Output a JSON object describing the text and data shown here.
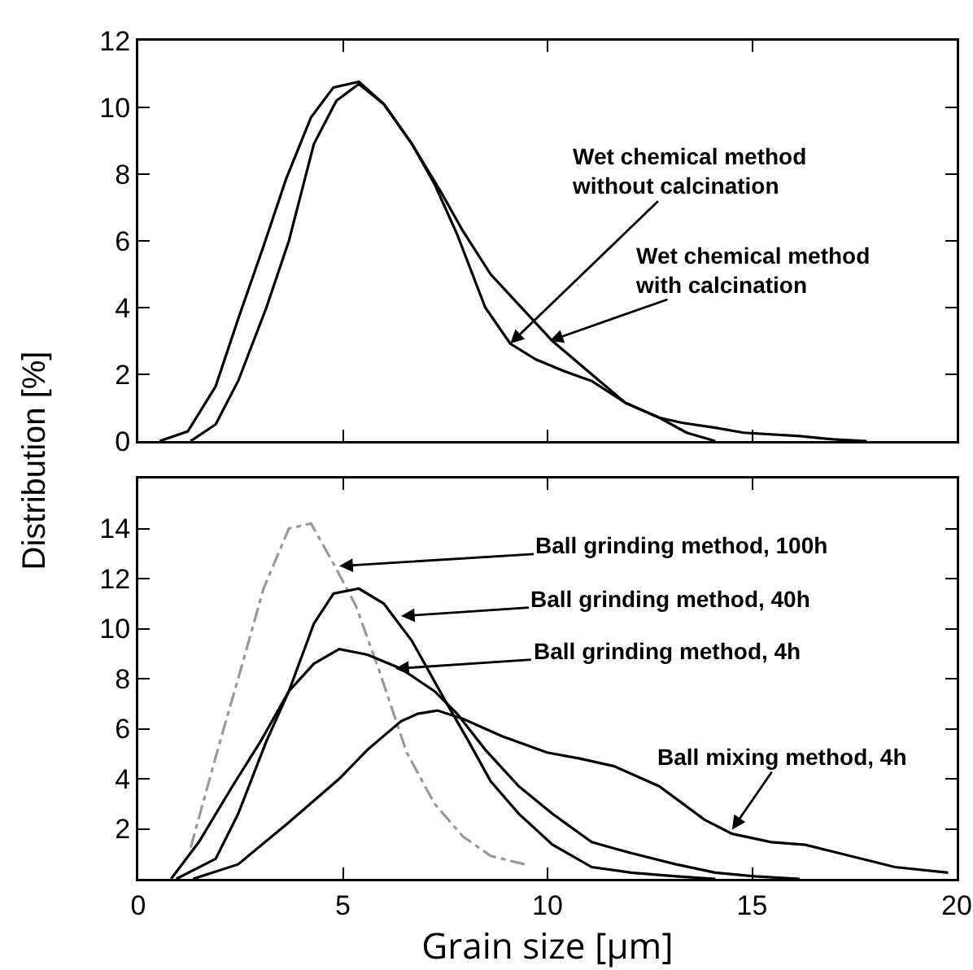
{
  "chart_data": [
    {
      "type": "line",
      "ylabel": "Distribution  [%]",
      "xlim": [
        0,
        20
      ],
      "xticks": [
        0,
        5,
        10,
        15,
        20
      ],
      "ylim": [
        0,
        12
      ],
      "yticks": [
        0,
        2,
        4,
        6,
        8,
        10,
        12
      ],
      "tick_labels": "y",
      "series": [
        {
          "color": "#000000",
          "x": [
            0.52,
            1.21,
            1.89,
            2.44,
            3.06,
            3.61,
            4.22,
            4.77,
            5.39,
            6.0,
            6.69,
            7.24,
            7.79,
            8.48,
            9.09,
            9.71,
            10.4,
            11.08,
            11.9,
            12.73,
            13.4,
            14.1
          ],
          "values": [
            0,
            0.29,
            1.64,
            3.66,
            5.84,
            7.85,
            9.7,
            10.6,
            10.77,
            10.1,
            8.9,
            7.7,
            6.2,
            4.0,
            2.92,
            2.45,
            2.1,
            1.8,
            1.15,
            0.7,
            0.25,
            0
          ]
        },
        {
          "color": "#000000",
          "x": [
            1.28,
            1.89,
            2.44,
            3.13,
            3.68,
            4.29,
            4.84,
            5.39,
            6.0,
            6.69,
            7.38,
            7.93,
            8.61,
            9.44,
            10.12,
            11.08,
            11.9,
            12.73,
            13.28,
            14.1,
            14.79,
            16.16,
            16.98,
            17.8
          ],
          "values": [
            0,
            0.5,
            1.8,
            4.0,
            6.0,
            8.9,
            10.2,
            10.7,
            10.1,
            8.9,
            7.5,
            6.3,
            5.0,
            3.9,
            3.0,
            2.0,
            1.15,
            0.7,
            0.55,
            0.4,
            0.25,
            0.15,
            0.05,
            0
          ]
        }
      ],
      "annotations": [
        {
          "text": "Wet chemical method\nwithout calcination",
          "x": 9.09,
          "y": 2.92
        },
        {
          "text": "Wet chemical method\nwith calcination",
          "x": 10.05,
          "y": 3.0
        }
      ]
    },
    {
      "type": "line",
      "xlabel": "Grain size [µm]",
      "xlim": [
        0,
        20
      ],
      "xticks": [
        0,
        5,
        10,
        15,
        20
      ],
      "ylim": [
        0,
        16
      ],
      "yticks": [
        2,
        4,
        6,
        8,
        10,
        12,
        14
      ],
      "series": [
        {
          "color": "#999999",
          "line_style": "dashed",
          "x": [
            1.28,
            1.96,
            2.51,
            3.06,
            3.68,
            4.22,
            4.77,
            5.32,
            5.87,
            6.56,
            7.24,
            7.93,
            8.61,
            9.44
          ],
          "values": [
            1.25,
            5.27,
            8.4,
            11.6,
            14.0,
            14.2,
            12.6,
            10.9,
            8.4,
            5.05,
            3.0,
            1.7,
            0.92,
            0.58
          ]
        },
        {
          "color": "#000000",
          "x": [
            0.93,
            1.89,
            2.44,
            3.13,
            3.68,
            4.29,
            4.77,
            5.39,
            6.0,
            6.69,
            7.52,
            8.07,
            8.61,
            9.3,
            10.12,
            11.08,
            12.04,
            13.14,
            14.1
          ],
          "values": [
            0,
            0.8,
            2.6,
            5.5,
            7.5,
            10.2,
            11.4,
            11.6,
            11.0,
            9.5,
            7.06,
            5.5,
            3.9,
            2.6,
            1.37,
            0.47,
            0.25,
            0.1,
            0
          ]
        },
        {
          "color": "#000000",
          "x": [
            0.8,
            1.48,
            2.3,
            2.99,
            3.68,
            4.29,
            4.91,
            5.6,
            6.42,
            7.24,
            7.79,
            8.48,
            9.3,
            10.12,
            11.08,
            12.04,
            13.14,
            14.1,
            15.06,
            16.16
          ],
          "values": [
            0,
            1.47,
            3.7,
            5.5,
            7.5,
            8.6,
            9.18,
            8.96,
            8.4,
            7.5,
            6.6,
            5.16,
            3.7,
            2.6,
            1.47,
            1.03,
            0.58,
            0.25,
            0.1,
            0
          ]
        },
        {
          "color": "#000000",
          "x": [
            1.34,
            2.44,
            3.68,
            4.91,
            5.6,
            6.42,
            6.83,
            7.31,
            7.93,
            8.89,
            9.99,
            10.81,
            11.63,
            12.73,
            13.83,
            14.51,
            15.47,
            16.3,
            17.39,
            18.49,
            19.79
          ],
          "values": [
            0,
            0.58,
            2.26,
            4.0,
            5.16,
            6.3,
            6.6,
            6.73,
            6.4,
            5.7,
            5.05,
            4.8,
            4.5,
            3.7,
            2.37,
            1.8,
            1.47,
            1.36,
            0.92,
            0.47,
            0.25
          ]
        }
      ],
      "annotations": [
        {
          "text": "Ball grinding method, 100h",
          "x": 4.91,
          "y": 12.5
        },
        {
          "text": "Ball grinding method, 40h",
          "x": 6.42,
          "y": 10.5
        },
        {
          "text": "Ball grinding method, 4h",
          "x": 6.28,
          "y": 8.4
        },
        {
          "text": "Ball mixing method, 4h",
          "x": 14.51,
          "y": 1.97
        }
      ]
    }
  ]
}
